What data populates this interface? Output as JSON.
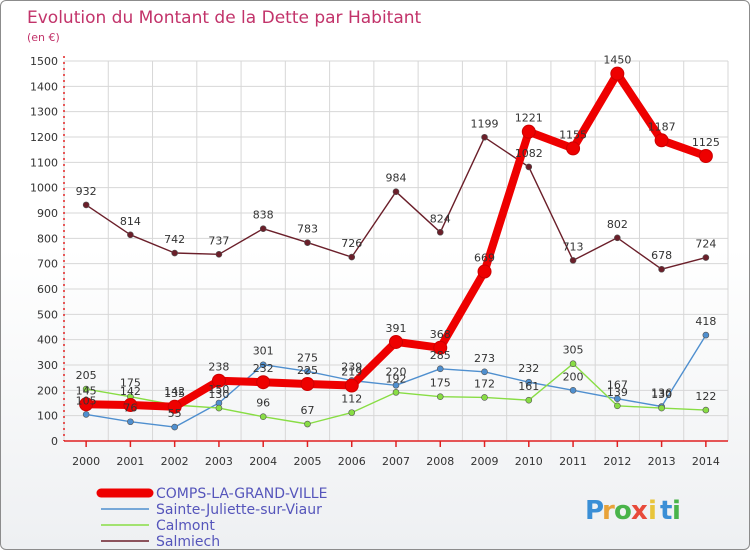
{
  "chart_data": {
    "type": "line",
    "title": "Evolution du Montant de la Dette par Habitant",
    "subtitle": "(en €)",
    "x": [
      "2000",
      "2001",
      "2002",
      "2003",
      "2004",
      "2005",
      "2006",
      "2007",
      "2008",
      "2009",
      "2010",
      "2011",
      "2012",
      "2013",
      "2014"
    ],
    "yticks": [
      0,
      100,
      200,
      300,
      400,
      500,
      600,
      700,
      800,
      900,
      1000,
      1100,
      1200,
      1300,
      1400,
      1500
    ],
    "ylim": [
      0,
      1500
    ],
    "series": [
      {
        "name": "COMPS-LA-GRAND-VILLE",
        "color": "#ee0000",
        "values": [
          145,
          142,
          135,
          238,
          232,
          225,
          219,
          391,
          368,
          669,
          1221,
          1155,
          1450,
          1187,
          1125
        ],
        "labels": [
          "145",
          "142",
          "135",
          "238",
          "232",
          "225",
          "219",
          "391",
          "368",
          "669",
          "1221",
          "1155",
          "1450",
          "1187",
          "1125"
        ]
      },
      {
        "name": "Sainte-Juliette-sur-Viaur",
        "color": "#4f8fcf",
        "values": [
          105,
          76,
          55,
          150,
          301,
          275,
          239,
          220,
          285,
          273,
          232,
          200,
          167,
          136,
          418
        ],
        "labels": [
          "105",
          "76",
          "55",
          "150",
          "301",
          "275",
          "239",
          "220",
          "285",
          "273",
          "232",
          "200",
          "167",
          "136",
          "418"
        ]
      },
      {
        "name": "Calmont",
        "color": "#88dd44",
        "values": [
          205,
          175,
          142,
          130,
          96,
          67,
          112,
          192,
          175,
          172,
          161,
          305,
          139,
          130,
          122
        ],
        "labels": [
          "205",
          "175",
          "142",
          "130",
          "96",
          "67",
          "112",
          "192",
          "175",
          "172",
          "161",
          "305",
          "139",
          "130",
          "122"
        ]
      },
      {
        "name": "Salmiech",
        "color": "#6b1f2a",
        "values": [
          932,
          814,
          742,
          737,
          838,
          783,
          726,
          984,
          824,
          1199,
          1082,
          713,
          802,
          678,
          724
        ],
        "labels": [
          "932",
          "814",
          "742",
          "737",
          "838",
          "783",
          "726",
          "984",
          "824",
          "1199",
          "1082",
          "713",
          "802",
          "678",
          "724"
        ]
      }
    ]
  },
  "legend": {
    "items": [
      "COMPS-LA-GRAND-VILLE",
      "Sainte-Juliette-sur-Viaur",
      "Calmont",
      "Salmiech"
    ]
  },
  "brand": {
    "letters": [
      "P",
      "r",
      "o",
      "x",
      "i",
      "t",
      "i"
    ],
    "colors": [
      "#3a8fd6",
      "#e8a33a",
      "#49b44a",
      "#e84a3a",
      "#e8c53a",
      "#3a8fd6",
      "#49b44a"
    ]
  }
}
